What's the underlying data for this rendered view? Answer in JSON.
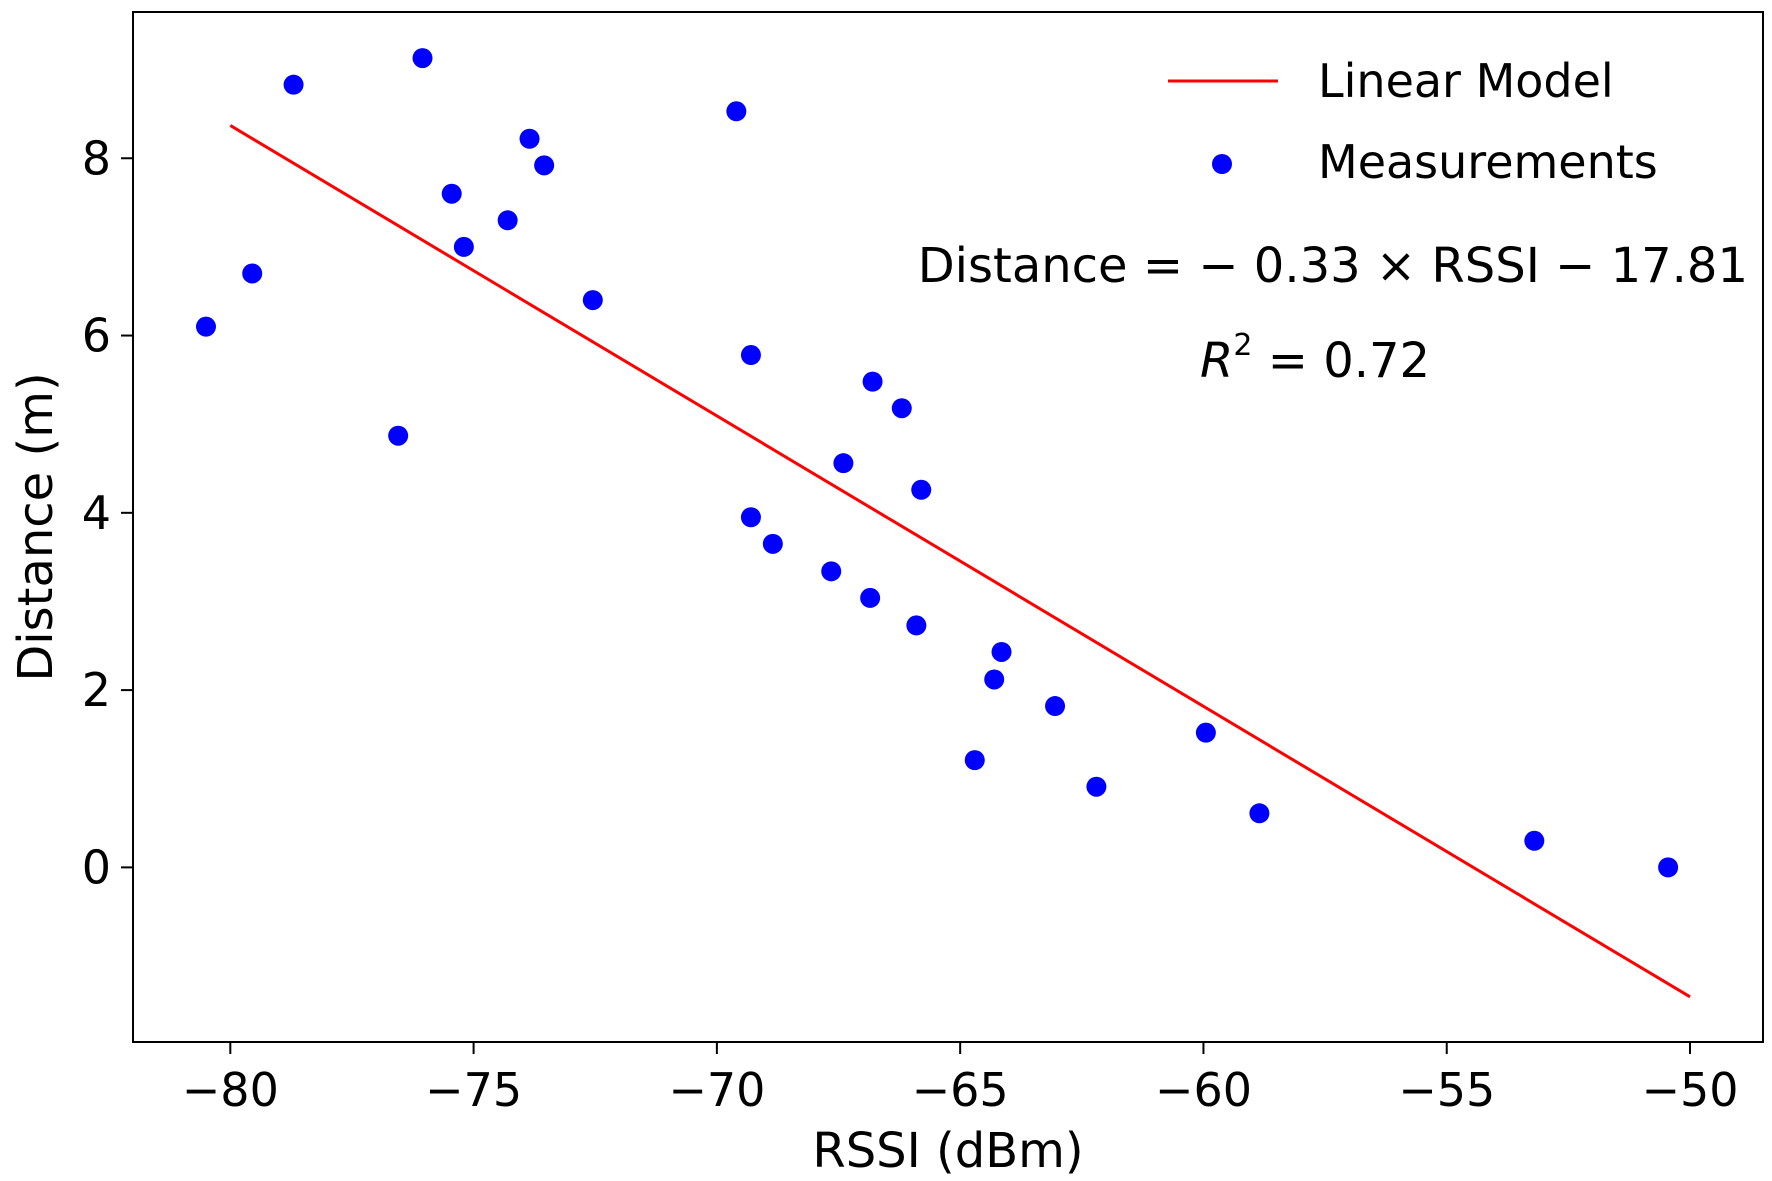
{
  "chart_data": {
    "type": "scatter",
    "title": "",
    "xlabel": "RSSI (dBm)",
    "ylabel": "Distance (m)",
    "xlim": [
      -82,
      -48.5
    ],
    "ylim": [
      -1.97,
      9.65
    ],
    "grid": false,
    "xticks": [
      -80,
      -75,
      -70,
      -65,
      -60,
      -55,
      -50
    ],
    "xtick_labels": [
      "−80",
      "−75",
      "−70",
      "−65",
      "−60",
      "−55",
      "−50"
    ],
    "yticks": [
      0,
      2,
      4,
      6,
      8
    ],
    "ytick_labels": [
      "0",
      "2",
      "4",
      "6",
      "8"
    ],
    "legend_position": "top-right",
    "series": [
      {
        "name": "Linear Model",
        "kind": "line",
        "color": "#ff0000",
        "x": [
          -80,
          -50
        ],
        "y": [
          8.37,
          -1.46
        ]
      },
      {
        "name": "Measurements",
        "kind": "scatter",
        "color": "#0000ff",
        "points": [
          {
            "x": -80.5,
            "y": 6.1
          },
          {
            "x": -79.55,
            "y": 6.7
          },
          {
            "x": -78.7,
            "y": 8.83
          },
          {
            "x": -76.55,
            "y": 4.87
          },
          {
            "x": -76.05,
            "y": 9.13
          },
          {
            "x": -75.45,
            "y": 7.6
          },
          {
            "x": -75.2,
            "y": 7.0
          },
          {
            "x": -74.3,
            "y": 7.3
          },
          {
            "x": -73.85,
            "y": 8.22
          },
          {
            "x": -73.55,
            "y": 7.92
          },
          {
            "x": -72.55,
            "y": 6.4
          },
          {
            "x": -69.6,
            "y": 8.53
          },
          {
            "x": -69.3,
            "y": 5.78
          },
          {
            "x": -69.3,
            "y": 3.95
          },
          {
            "x": -68.85,
            "y": 3.65
          },
          {
            "x": -67.65,
            "y": 3.34
          },
          {
            "x": -67.4,
            "y": 4.56
          },
          {
            "x": -66.85,
            "y": 3.04
          },
          {
            "x": -66.8,
            "y": 5.48
          },
          {
            "x": -66.2,
            "y": 5.18
          },
          {
            "x": -65.9,
            "y": 2.73
          },
          {
            "x": -65.8,
            "y": 4.26
          },
          {
            "x": -64.7,
            "y": 1.21
          },
          {
            "x": -64.3,
            "y": 2.12
          },
          {
            "x": -64.15,
            "y": 2.43
          },
          {
            "x": -63.05,
            "y": 1.82
          },
          {
            "x": -62.2,
            "y": 0.91
          },
          {
            "x": -59.95,
            "y": 1.52
          },
          {
            "x": -58.85,
            "y": 0.61
          },
          {
            "x": -53.2,
            "y": 0.3
          },
          {
            "x": -50.45,
            "y": 0.0
          }
        ]
      }
    ],
    "annotations": [
      {
        "name": "equation",
        "text": "Distance = − 0.33 × RSSI − 17.81"
      },
      {
        "name": "r-squared-symbol",
        "text": "R"
      },
      {
        "name": "r-squared-exponent",
        "text": "2"
      },
      {
        "name": "r-squared-value",
        "text": " = 0.72"
      }
    ]
  }
}
